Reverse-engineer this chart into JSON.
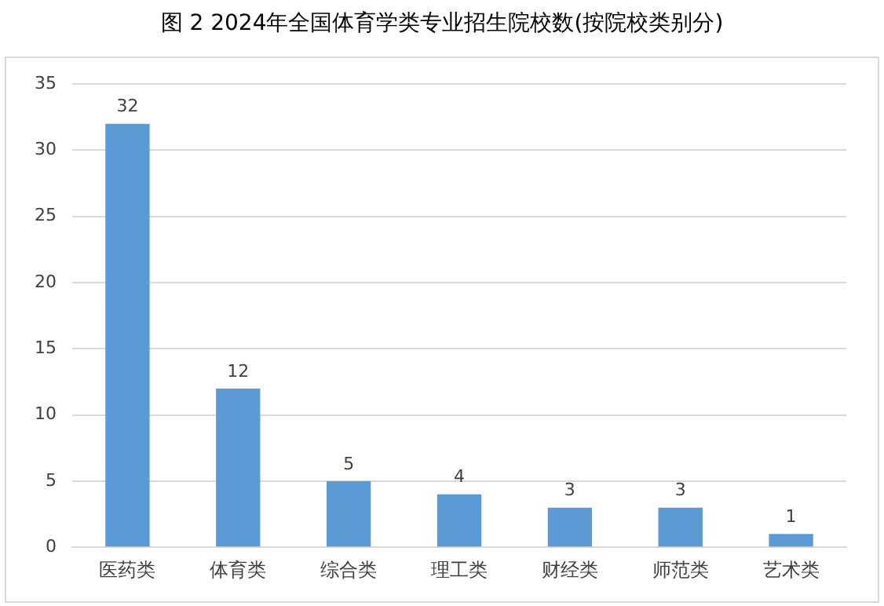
{
  "chart_data": {
    "type": "bar",
    "title": "图 2 2024年全国体育学类专业招生院校数(按院校类别分)",
    "categories": [
      "医药类",
      "体育类",
      "综合类",
      "理工类",
      "财经类",
      "师范类",
      "艺术类"
    ],
    "values": [
      32,
      12,
      5,
      4,
      3,
      3,
      1
    ],
    "color": "#5b9bd5",
    "ylim": [
      0,
      35
    ],
    "yticks": [
      0,
      5,
      10,
      15,
      20,
      25,
      30,
      35
    ],
    "grid": "y",
    "data_labels": true,
    "legend": false
  }
}
